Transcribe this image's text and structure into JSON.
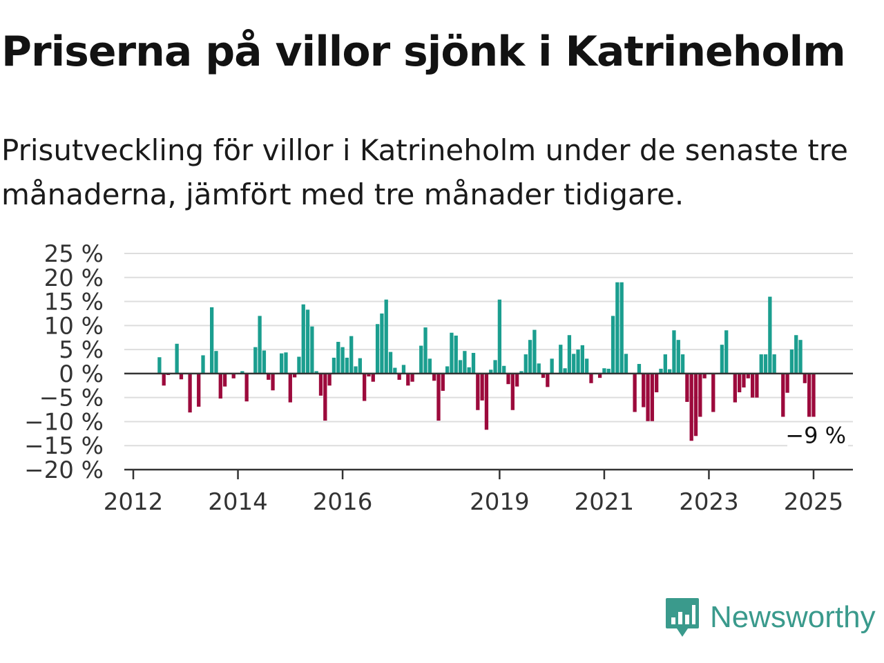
{
  "title": "Priserna på villor sjönk i Katrineholm",
  "subtitle": "Prisutveckling för villor i Katrineholm under de senaste tre månaderna, jämfört med tre månader tidigare.",
  "brand": {
    "name": "Newsworthy",
    "icon": "newsworthy-logo-icon",
    "color": "#3a9a8c"
  },
  "chart_data": {
    "type": "bar",
    "title": "",
    "xlabel": "",
    "ylabel": "",
    "ylim": [
      -20,
      25
    ],
    "y_ticks": [
      25,
      20,
      15,
      10,
      5,
      0,
      -5,
      -10,
      -15,
      -20
    ],
    "y_tick_labels": [
      "25 %",
      "20 %",
      "15 %",
      "10 %",
      "5 %",
      "0 %",
      "−5 %",
      "−10 %",
      "−15 %",
      "−20 %"
    ],
    "x_ticks": [
      2012,
      2014,
      2016,
      2019,
      2021,
      2023,
      2025
    ],
    "x_tick_labels": [
      "2012",
      "2014",
      "2016",
      "2019",
      "2021",
      "2023",
      "2025"
    ],
    "grid": true,
    "colors": {
      "positive": "#1b9e8f",
      "negative": "#9c0a3c",
      "zero_line": "#333333",
      "grid": "#dddddd"
    },
    "end_label": "−9 %",
    "series": [
      {
        "values": [
          {
            "x": "2012-07",
            "y": 3.4
          },
          {
            "x": "2012-08",
            "y": -2.5
          },
          {
            "x": "2012-09",
            "y": -0.3
          },
          {
            "x": "2012-11",
            "y": 6.2
          },
          {
            "x": "2012-12",
            "y": -1.2
          },
          {
            "x": "2013-02",
            "y": -8.1
          },
          {
            "x": "2013-04",
            "y": -6.9
          },
          {
            "x": "2013-05",
            "y": 3.8
          },
          {
            "x": "2013-07",
            "y": 13.8
          },
          {
            "x": "2013-08",
            "y": 4.7
          },
          {
            "x": "2013-09",
            "y": -5.2
          },
          {
            "x": "2013-10",
            "y": -2.7
          },
          {
            "x": "2013-12",
            "y": -1.0
          },
          {
            "x": "2014-02",
            "y": 0.5
          },
          {
            "x": "2014-03",
            "y": -5.8
          },
          {
            "x": "2014-05",
            "y": 5.5
          },
          {
            "x": "2014-06",
            "y": 12.0
          },
          {
            "x": "2014-07",
            "y": 4.8
          },
          {
            "x": "2014-08",
            "y": -1.3
          },
          {
            "x": "2014-09",
            "y": -3.5
          },
          {
            "x": "2014-11",
            "y": 4.2
          },
          {
            "x": "2014-12",
            "y": 4.4
          },
          {
            "x": "2015-01",
            "y": -6.0
          },
          {
            "x": "2015-02",
            "y": -0.8
          },
          {
            "x": "2015-03",
            "y": 3.5
          },
          {
            "x": "2015-04",
            "y": 14.4
          },
          {
            "x": "2015-05",
            "y": 13.3
          },
          {
            "x": "2015-06",
            "y": 9.8
          },
          {
            "x": "2015-07",
            "y": 0.5
          },
          {
            "x": "2015-08",
            "y": -4.6
          },
          {
            "x": "2015-09",
            "y": -9.8
          },
          {
            "x": "2015-10",
            "y": -2.5
          },
          {
            "x": "2015-11",
            "y": 3.3
          },
          {
            "x": "2015-12",
            "y": 6.6
          },
          {
            "x": "2016-01",
            "y": 5.5
          },
          {
            "x": "2016-02",
            "y": 3.3
          },
          {
            "x": "2016-03",
            "y": 7.8
          },
          {
            "x": "2016-04",
            "y": 1.5
          },
          {
            "x": "2016-05",
            "y": 3.2
          },
          {
            "x": "2016-06",
            "y": -5.7
          },
          {
            "x": "2016-07",
            "y": -0.6
          },
          {
            "x": "2016-08",
            "y": -1.7
          },
          {
            "x": "2016-09",
            "y": 10.3
          },
          {
            "x": "2016-10",
            "y": 12.5
          },
          {
            "x": "2016-11",
            "y": 15.4
          },
          {
            "x": "2016-12",
            "y": 4.5
          },
          {
            "x": "2017-01",
            "y": 1.2
          },
          {
            "x": "2017-02",
            "y": -1.3
          },
          {
            "x": "2017-03",
            "y": 1.8
          },
          {
            "x": "2017-04",
            "y": -2.5
          },
          {
            "x": "2017-05",
            "y": -1.7
          },
          {
            "x": "2017-07",
            "y": 5.8
          },
          {
            "x": "2017-08",
            "y": 9.6
          },
          {
            "x": "2017-09",
            "y": 3.1
          },
          {
            "x": "2017-10",
            "y": -1.5
          },
          {
            "x": "2017-11",
            "y": -9.8
          },
          {
            "x": "2017-12",
            "y": -3.6
          },
          {
            "x": "2018-01",
            "y": 1.5
          },
          {
            "x": "2018-02",
            "y": 8.5
          },
          {
            "x": "2018-03",
            "y": 7.9
          },
          {
            "x": "2018-04",
            "y": 2.8
          },
          {
            "x": "2018-05",
            "y": 4.7
          },
          {
            "x": "2018-06",
            "y": 1.3
          },
          {
            "x": "2018-07",
            "y": 4.3
          },
          {
            "x": "2018-08",
            "y": -7.6
          },
          {
            "x": "2018-09",
            "y": -5.6
          },
          {
            "x": "2018-10",
            "y": -11.7
          },
          {
            "x": "2018-11",
            "y": 0.8
          },
          {
            "x": "2018-12",
            "y": 2.8
          },
          {
            "x": "2019-01",
            "y": 15.4
          },
          {
            "x": "2019-02",
            "y": 1.6
          },
          {
            "x": "2019-03",
            "y": -2.2
          },
          {
            "x": "2019-04",
            "y": -7.6
          },
          {
            "x": "2019-05",
            "y": -2.7
          },
          {
            "x": "2019-06",
            "y": 0.5
          },
          {
            "x": "2019-07",
            "y": 4.0
          },
          {
            "x": "2019-08",
            "y": 7.0
          },
          {
            "x": "2019-09",
            "y": 9.1
          },
          {
            "x": "2019-10",
            "y": 2.1
          },
          {
            "x": "2019-11",
            "y": -0.9
          },
          {
            "x": "2019-12",
            "y": -2.8
          },
          {
            "x": "2020-01",
            "y": 3.1
          },
          {
            "x": "2020-03",
            "y": 6.0
          },
          {
            "x": "2020-04",
            "y": 1.1
          },
          {
            "x": "2020-05",
            "y": 8.0
          },
          {
            "x": "2020-06",
            "y": 4.1
          },
          {
            "x": "2020-07",
            "y": 5.0
          },
          {
            "x": "2020-08",
            "y": 5.9
          },
          {
            "x": "2020-09",
            "y": 3.1
          },
          {
            "x": "2020-10",
            "y": -2.0
          },
          {
            "x": "2020-12",
            "y": -0.9
          },
          {
            "x": "2021-01",
            "y": 1.1
          },
          {
            "x": "2021-02",
            "y": 1.0
          },
          {
            "x": "2021-03",
            "y": 12.0
          },
          {
            "x": "2021-04",
            "y": 19.0
          },
          {
            "x": "2021-05",
            "y": 19.0
          },
          {
            "x": "2021-06",
            "y": 4.1
          },
          {
            "x": "2021-08",
            "y": -8.0
          },
          {
            "x": "2021-09",
            "y": 2.0
          },
          {
            "x": "2021-10",
            "y": -7.0
          },
          {
            "x": "2021-11",
            "y": -9.9
          },
          {
            "x": "2021-12",
            "y": -9.9
          },
          {
            "x": "2022-01",
            "y": -3.9
          },
          {
            "x": "2022-02",
            "y": 1.0
          },
          {
            "x": "2022-03",
            "y": 4.0
          },
          {
            "x": "2022-04",
            "y": 0.9
          },
          {
            "x": "2022-05",
            "y": 9.0
          },
          {
            "x": "2022-06",
            "y": 7.0
          },
          {
            "x": "2022-07",
            "y": 4.0
          },
          {
            "x": "2022-08",
            "y": -5.9
          },
          {
            "x": "2022-09",
            "y": -14.0
          },
          {
            "x": "2022-10",
            "y": -13.0
          },
          {
            "x": "2022-11",
            "y": -9.0
          },
          {
            "x": "2022-12",
            "y": -1.0
          },
          {
            "x": "2023-02",
            "y": -8.0
          },
          {
            "x": "2023-04",
            "y": 6.0
          },
          {
            "x": "2023-05",
            "y": 9.0
          },
          {
            "x": "2023-07",
            "y": -6.0
          },
          {
            "x": "2023-08",
            "y": -3.9
          },
          {
            "x": "2023-09",
            "y": -2.9
          },
          {
            "x": "2023-10",
            "y": -1.0
          },
          {
            "x": "2023-11",
            "y": -5.0
          },
          {
            "x": "2023-12",
            "y": -5.0
          },
          {
            "x": "2024-01",
            "y": 4.0
          },
          {
            "x": "2024-02",
            "y": 4.0
          },
          {
            "x": "2024-03",
            "y": 16.0
          },
          {
            "x": "2024-04",
            "y": 4.0
          },
          {
            "x": "2024-06",
            "y": -9.0
          },
          {
            "x": "2024-07",
            "y": -4.0
          },
          {
            "x": "2024-08",
            "y": 5.0
          },
          {
            "x": "2024-09",
            "y": 8.0
          },
          {
            "x": "2024-10",
            "y": 7.0
          },
          {
            "x": "2024-11",
            "y": -2.0
          },
          {
            "x": "2024-12",
            "y": -9.0
          },
          {
            "x": "2025-01",
            "y": -9.0
          }
        ]
      }
    ]
  }
}
